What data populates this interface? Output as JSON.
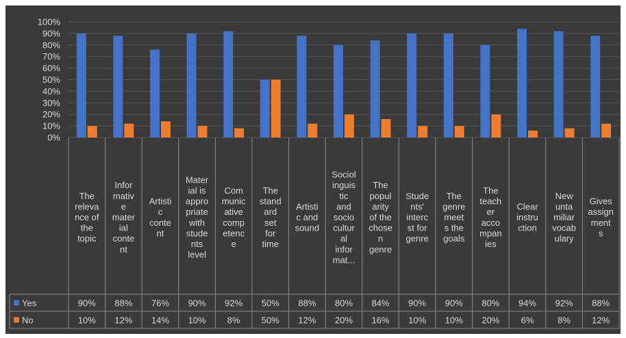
{
  "chart_data": {
    "type": "bar",
    "ylim": [
      0,
      100
    ],
    "ytick_labels": [
      "0%",
      "10%",
      "20%",
      "30%",
      "40%",
      "50%",
      "60%",
      "70%",
      "80%",
      "90%",
      "100%"
    ],
    "categories": [
      [
        "The",
        "releva",
        "nce of",
        "the",
        "topic"
      ],
      [
        "Infor",
        "mativ",
        "e",
        "mater",
        "ial",
        "conte",
        "nt"
      ],
      [
        "Artisti",
        "c",
        "conte",
        "nt"
      ],
      [
        "Mater",
        "ial is",
        "appro",
        "priate",
        "with",
        "stude",
        "nts",
        "level"
      ],
      [
        "Com",
        "munic",
        "ative",
        "comp",
        "etenc",
        "e"
      ],
      [
        "The",
        "stand",
        "ard",
        "set",
        "for",
        "time"
      ],
      [
        "Artisti",
        "c and",
        "sound"
      ],
      [
        "Sociol",
        "inguis",
        "tic",
        "and",
        "socio",
        "cultur",
        "al",
        "infor",
        "mat..."
      ],
      [
        "The",
        "popul",
        "arity",
        "of the",
        "chose",
        "n",
        "genre"
      ],
      [
        "Stude",
        "nts'",
        "interc",
        "st for",
        "genre"
      ],
      [
        "The",
        "genre",
        "meet",
        "s the",
        "goals"
      ],
      [
        "The",
        "teach",
        "er",
        "acco",
        "mpan",
        "ies"
      ],
      [
        "Clear",
        "instru",
        "ction"
      ],
      [
        "New",
        "unta",
        "miliar",
        "vocab",
        "ulary"
      ],
      [
        "Gives",
        "assign",
        "ment",
        "s"
      ]
    ],
    "series": [
      {
        "name": "Yes",
        "color": "#4472c4",
        "values": [
          90,
          88,
          76,
          90,
          92,
          50,
          88,
          80,
          84,
          90,
          90,
          80,
          94,
          92,
          88
        ],
        "labels": [
          "90%",
          "88%",
          "76%",
          "90%",
          "92%",
          "50%",
          "88%",
          "80%",
          "84%",
          "90%",
          "90%",
          "80%",
          "94%",
          "92%",
          "88%"
        ]
      },
      {
        "name": "No",
        "color": "#ed7d31",
        "values": [
          10,
          12,
          14,
          10,
          8,
          50,
          12,
          20,
          16,
          10,
          10,
          20,
          6,
          8,
          12
        ],
        "labels": [
          "10%",
          "12%",
          "14%",
          "10%",
          "8%",
          "50%",
          "12%",
          "20%",
          "16%",
          "10%",
          "10%",
          "20%",
          "6%",
          "8%",
          "12%"
        ]
      }
    ]
  }
}
